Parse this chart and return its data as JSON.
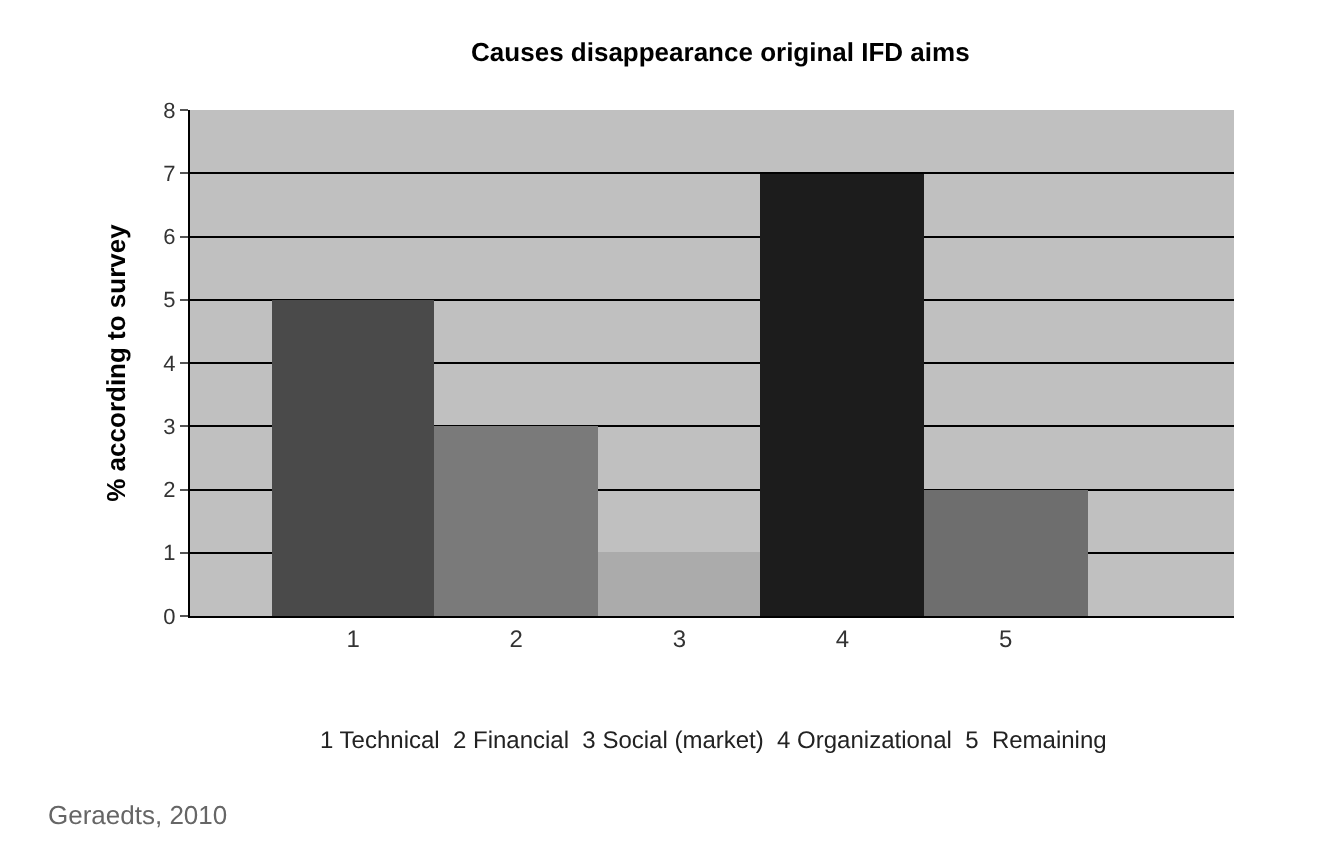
{
  "chart_data": {
    "type": "bar",
    "title": "Causes disappearance original IFD aims",
    "ylabel": "% according to survey",
    "categories": [
      "1",
      "2",
      "3",
      "4",
      "5"
    ],
    "values": [
      5,
      3,
      1,
      7,
      2
    ],
    "colors": [
      "#4a4a4a",
      "#7a7a7a",
      "#ababab",
      "#1c1c1c",
      "#6e6e6e"
    ],
    "ylim": [
      0,
      8
    ],
    "yticks": [
      0,
      1,
      2,
      3,
      4,
      5,
      6,
      7,
      8
    ],
    "grid": "y",
    "annotations": [
      "1 Technical  2 Financial  3 Social (market)  4 Organizational  5  Remaining",
      "Geraedts, 2010"
    ]
  }
}
